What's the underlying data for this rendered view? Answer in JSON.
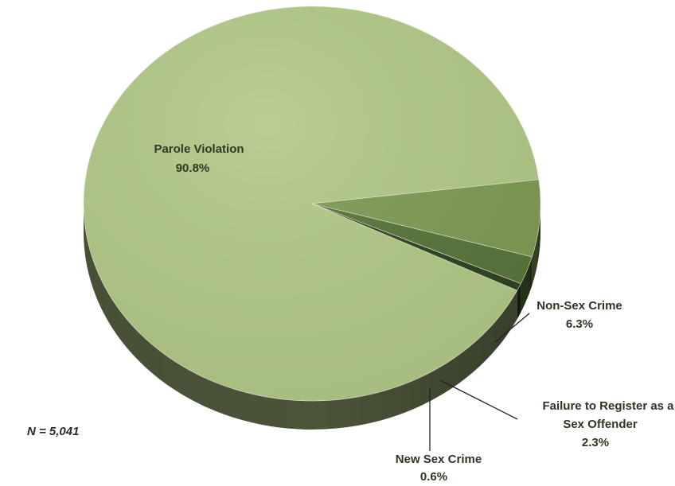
{
  "chart_data": {
    "type": "pie",
    "style": "3d",
    "slices": [
      {
        "label": "Parole Violation",
        "value": 90.8,
        "value_label": "90.8%",
        "color": "#b2c887"
      },
      {
        "label": "Non-Sex Crime",
        "value": 6.3,
        "value_label": "6.3%",
        "color": "#7e9a53"
      },
      {
        "label": "Failure to Register as a Sex Offender",
        "label_lines": [
          "Failure to Register as a",
          "Sex Offender"
        ],
        "value": 2.3,
        "value_label": "2.3%",
        "color": "#58743a"
      },
      {
        "label": "New Sex Crime",
        "value": 0.6,
        "value_label": "0.6%",
        "color": "#2f4222"
      }
    ],
    "annotation": "N = 5,041"
  }
}
